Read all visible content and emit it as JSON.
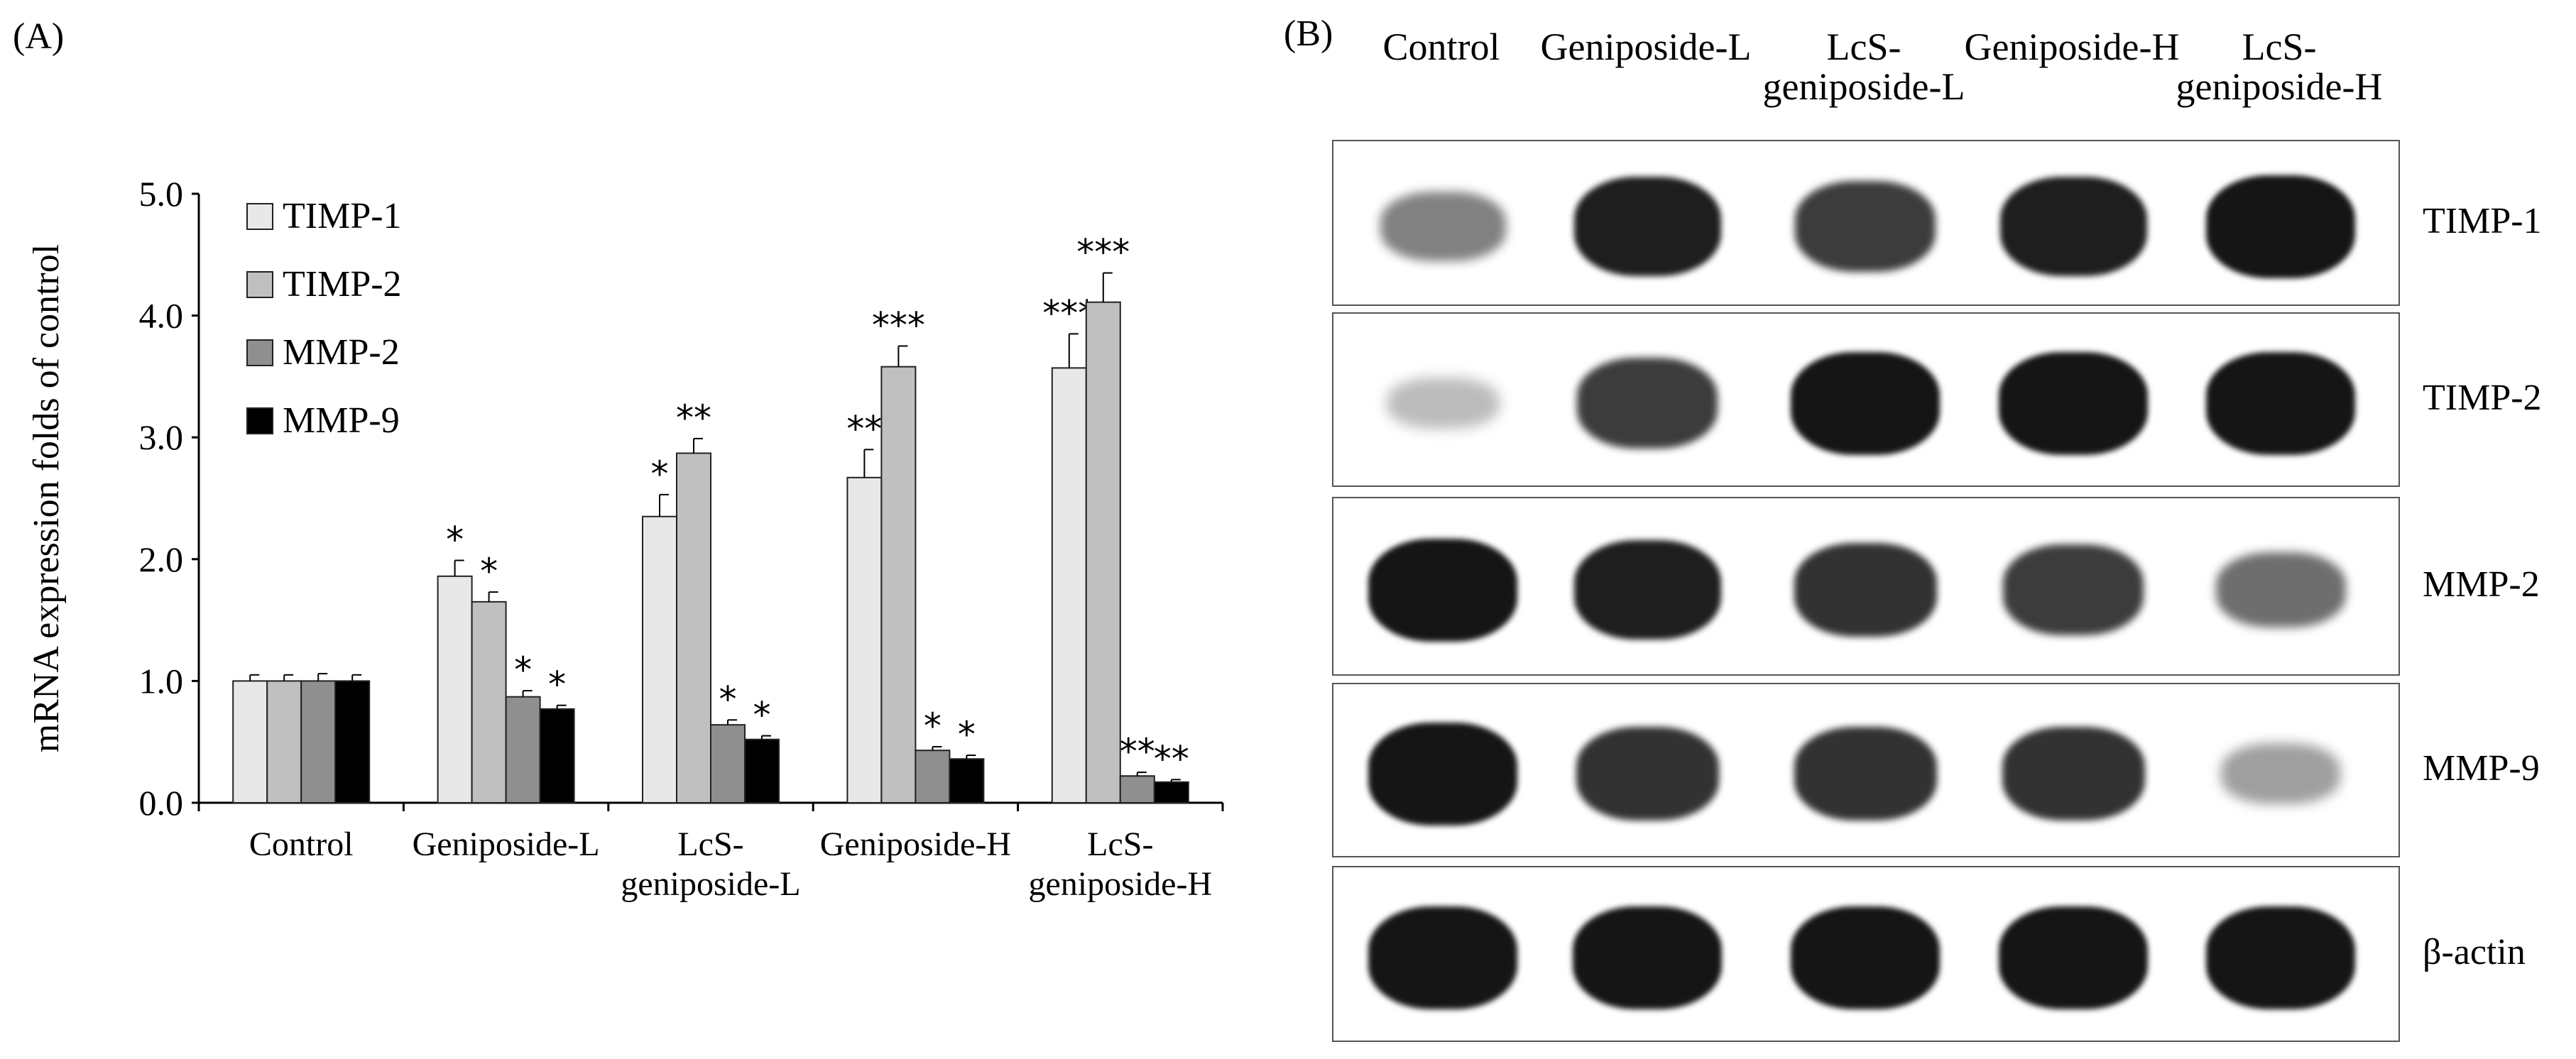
{
  "panels": {
    "a": "(A)",
    "b": "(B)"
  },
  "chart_data": {
    "type": "bar",
    "categories": [
      [
        "Control"
      ],
      [
        "Geniposide-L"
      ],
      [
        "LcS-",
        "geniposide-L"
      ],
      [
        "Geniposide-H"
      ],
      [
        "LcS-",
        "geniposide-H"
      ]
    ],
    "ylabel": "mRNA expression folds of control",
    "xlabel": "",
    "title": "",
    "ylim": [
      0,
      5
    ],
    "yticks": [
      "0.0",
      "1.0",
      "2.0",
      "3.0",
      "4.0",
      "5.0"
    ],
    "legend_position": "top-left",
    "grid": false,
    "series": [
      {
        "name": "TIMP-1",
        "color": "#e8e8e8",
        "values": [
          1.0,
          1.86,
          2.35,
          2.67,
          3.57
        ],
        "errors": [
          0.05,
          0.13,
          0.18,
          0.23,
          0.28
        ],
        "sig": [
          "",
          "*",
          "*",
          "**",
          "***"
        ]
      },
      {
        "name": "TIMP-2",
        "color": "#c0c0c0",
        "values": [
          1.0,
          1.65,
          2.87,
          3.58,
          4.11
        ],
        "errors": [
          0.05,
          0.08,
          0.12,
          0.17,
          0.24
        ],
        "sig": [
          "",
          "*",
          "**",
          "***",
          "***"
        ]
      },
      {
        "name": "MMP-2",
        "color": "#8f8f8f",
        "values": [
          1.0,
          0.87,
          0.64,
          0.43,
          0.22
        ],
        "errors": [
          0.06,
          0.05,
          0.04,
          0.03,
          0.03
        ],
        "sig": [
          "",
          "*",
          "*",
          "*",
          "**"
        ]
      },
      {
        "name": "MMP-9",
        "color": "#000000",
        "values": [
          1.0,
          0.77,
          0.52,
          0.36,
          0.17
        ],
        "errors": [
          0.05,
          0.03,
          0.03,
          0.03,
          0.02
        ],
        "sig": [
          "",
          "*",
          "*",
          "*",
          "**"
        ]
      }
    ]
  },
  "blot": {
    "lanes": [
      [
        "Control"
      ],
      [
        "Geniposide-L"
      ],
      [
        "LcS-",
        "geniposide-L"
      ],
      [
        "Geniposide-H"
      ],
      [
        "LcS-",
        "geniposide-H"
      ]
    ],
    "rows": [
      {
        "name": "TIMP-1",
        "intensity": [
          0.45,
          0.95,
          0.8,
          0.95,
          1.0
        ]
      },
      {
        "name": "TIMP-2",
        "intensity": [
          0.15,
          0.8,
          1.0,
          1.0,
          1.0
        ]
      },
      {
        "name": "MMP-2",
        "intensity": [
          1.0,
          0.95,
          0.85,
          0.8,
          0.55
        ]
      },
      {
        "name": "MMP-9",
        "intensity": [
          1.0,
          0.85,
          0.85,
          0.85,
          0.3
        ]
      },
      {
        "name": "β-actin",
        "intensity": [
          1.0,
          1.0,
          1.0,
          1.0,
          1.0
        ]
      }
    ]
  }
}
